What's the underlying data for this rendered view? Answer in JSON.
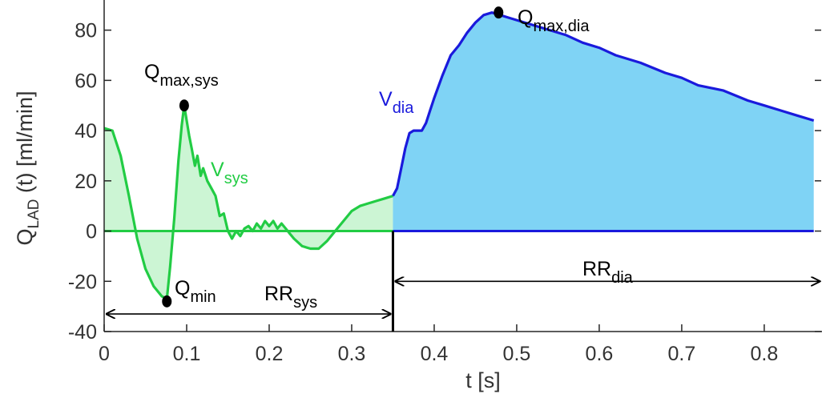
{
  "chart_data": {
    "type": "area",
    "xlabel": "t [s]",
    "ylabel": "Q_LAD (t) [ml/min]",
    "xlim": [
      0,
      0.87
    ],
    "ylim": [
      -40,
      92
    ],
    "grid": false,
    "xticks": [
      0,
      0.1,
      0.2,
      0.3,
      0.4,
      0.5,
      0.6,
      0.7,
      0.8
    ],
    "xtick_labels": [
      "0",
      "0.1",
      "0.2",
      "0.3",
      "0.4",
      "0.5",
      "0.6",
      "0.7",
      "0.8"
    ],
    "yticks": [
      -40,
      -20,
      0,
      20,
      40,
      60,
      80
    ],
    "ytick_labels": [
      "-40",
      "-20",
      "0",
      "20",
      "40",
      "60",
      "80"
    ],
    "series": [
      {
        "name": "V_sys",
        "color": "#22cc44",
        "fill": "#ccf5d4",
        "x": [
          0,
          0.01,
          0.02,
          0.03,
          0.04,
          0.05,
          0.06,
          0.07,
          0.076,
          0.08,
          0.085,
          0.09,
          0.094,
          0.097,
          0.1,
          0.103,
          0.106,
          0.11,
          0.113,
          0.117,
          0.12,
          0.125,
          0.13,
          0.135,
          0.14,
          0.145,
          0.15,
          0.155,
          0.16,
          0.165,
          0.17,
          0.175,
          0.18,
          0.185,
          0.19,
          0.195,
          0.2,
          0.205,
          0.21,
          0.215,
          0.22,
          0.225,
          0.23,
          0.24,
          0.25,
          0.26,
          0.27,
          0.28,
          0.29,
          0.3,
          0.31,
          0.32,
          0.33,
          0.34,
          0.35
        ],
        "y": [
          41,
          40,
          30,
          14,
          -3,
          -15,
          -22,
          -26,
          -27,
          -14,
          5,
          28,
          42,
          50,
          44,
          38,
          33,
          26,
          30,
          22,
          25,
          20,
          17,
          14,
          6,
          7,
          0,
          -3,
          0,
          -2,
          1,
          2,
          0,
          3,
          1,
          4,
          2,
          4,
          1,
          3,
          1,
          -1,
          -3,
          -6,
          -7,
          -7,
          -4,
          0,
          4,
          8,
          10,
          11,
          12,
          13,
          14
        ]
      },
      {
        "name": "V_dia",
        "color": "#1a1adc",
        "fill": "#7fd3f5",
        "x": [
          0.35,
          0.355,
          0.36,
          0.365,
          0.37,
          0.375,
          0.38,
          0.385,
          0.39,
          0.395,
          0.4,
          0.41,
          0.42,
          0.43,
          0.44,
          0.45,
          0.46,
          0.47,
          0.48,
          0.49,
          0.5,
          0.52,
          0.54,
          0.56,
          0.58,
          0.6,
          0.62,
          0.65,
          0.68,
          0.7,
          0.72,
          0.75,
          0.78,
          0.8,
          0.82,
          0.84,
          0.86
        ],
        "y": [
          14,
          17,
          25,
          33,
          39,
          40,
          40,
          40,
          43,
          48,
          53,
          62,
          70,
          74,
          79,
          83,
          86,
          87,
          86,
          85,
          84,
          82,
          80,
          78,
          75,
          73,
          70,
          67,
          63,
          61,
          58,
          56,
          52,
          50,
          48,
          46,
          44
        ]
      }
    ],
    "annotations": {
      "q_max_sys": {
        "label": "Q",
        "sub": "max,sys",
        "x": 0.097,
        "y": 50
      },
      "q_min": {
        "label": "Q",
        "sub": "min",
        "x": 0.076,
        "y": -28
      },
      "q_max_dia": {
        "label": "Q",
        "sub": "max,dia",
        "x": 0.478,
        "y": 87
      },
      "v_sys": {
        "label": "V",
        "sub": "sys"
      },
      "v_dia": {
        "label": "V",
        "sub": "dia"
      },
      "rr_sys": {
        "label": "RR",
        "sub": "sys",
        "x_start": 0,
        "x_end": 0.35,
        "y": -33
      },
      "rr_dia": {
        "label": "RR",
        "sub": "dia",
        "x_start": 0.35,
        "x_end": 0.87,
        "y": -20
      }
    },
    "divider_x": 0.35
  }
}
